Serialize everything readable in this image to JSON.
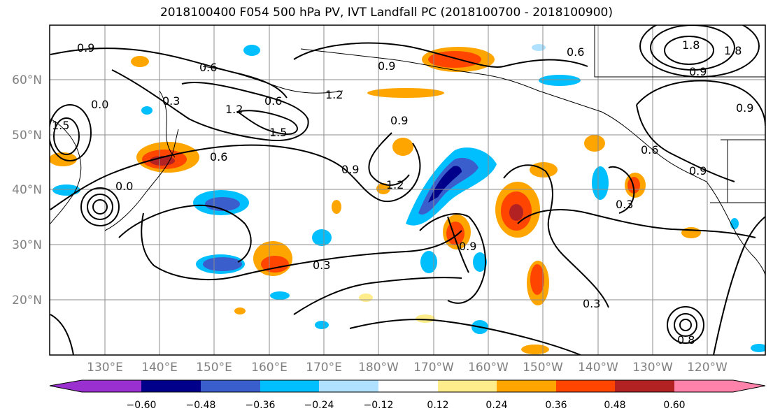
{
  "title": "2018100400 F054 500 hPa PV, IVT Landfall PC (2018100700 - 2018100900)",
  "map": {
    "lat_ticks": [
      "60°N",
      "50°N",
      "40°N",
      "30°N",
      "20°N"
    ],
    "lon_ticks": [
      "130°E",
      "140°E",
      "150°E",
      "160°E",
      "170°E",
      "180°W",
      "170°W",
      "160°W",
      "150°W",
      "140°W",
      "130°W",
      "120°W"
    ],
    "contour_labels": [
      "0.9",
      "0.6",
      "0.3",
      "0.6",
      "1.2",
      "1.5",
      "0.6",
      "0.9",
      "1.2",
      "0.9",
      "0.9",
      "0.6",
      "0.6",
      "0.9",
      "0.3",
      "0.3",
      "0.9",
      "0.3",
      "0.8",
      "1.2",
      "0.9",
      "0.9",
      "1.5",
      "0.0",
      "0.0",
      "1.8",
      "1.8"
    ],
    "colors": {
      "neg_060_less": "#9b30d0",
      "neg_060_048": "#00008b",
      "neg_048_036": "#3a5fcd",
      "neg_036_024": "#00bfff",
      "neg_024_012": "#b0e2ff",
      "neutral": "#ffffff",
      "pos_012_024": "#ffec8b",
      "pos_024_036": "#ffa500",
      "pos_036_048": "#ff4500",
      "pos_048_060": "#b22222",
      "pos_060_more": "#ff82ab"
    }
  },
  "colorbar": {
    "tick_labels": [
      "−0.60",
      "−0.48",
      "−0.36",
      "−0.24",
      "−0.12",
      "0.12",
      "0.24",
      "0.36",
      "0.48",
      "0.60"
    ]
  }
}
